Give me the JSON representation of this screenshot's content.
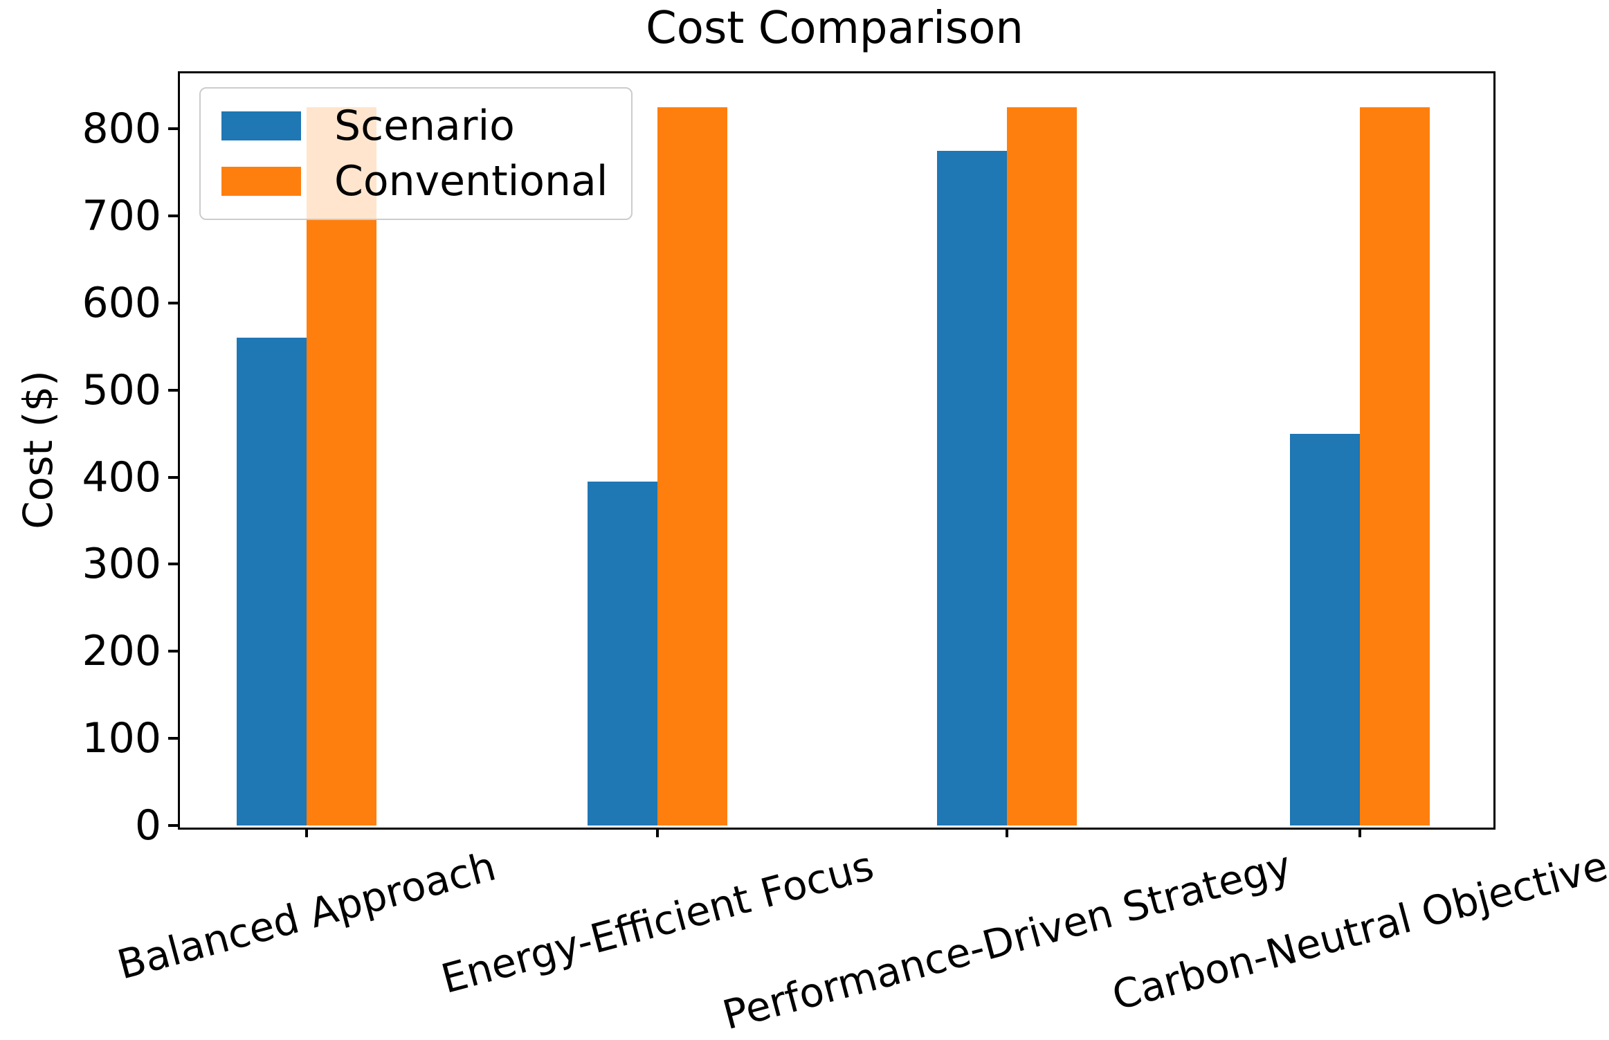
{
  "chart_data": {
    "type": "bar",
    "title": "Cost Comparison",
    "xlabel": "",
    "ylabel": "Cost ($)",
    "categories": [
      "Balanced Approach",
      "Energy-Efficient Focus",
      "Performance-Driven Strategy",
      "Carbon-Neutral Objective"
    ],
    "series": [
      {
        "name": "Scenario",
        "color": "#1f77b4",
        "values": [
          560,
          395,
          775,
          450
        ]
      },
      {
        "name": "Conventional",
        "color": "#ff7f0e",
        "values": [
          825,
          825,
          825,
          825
        ]
      }
    ],
    "ylim": [
      0,
      866
    ],
    "yticks": [
      0,
      100,
      200,
      300,
      400,
      500,
      600,
      700,
      800
    ],
    "grid": false,
    "legend_position": "upper left",
    "legend_labels": [
      "Scenario",
      "Conventional"
    ],
    "xtick_rotation_deg": 15,
    "axis_color": "#000000",
    "background_color": "#ffffff"
  }
}
